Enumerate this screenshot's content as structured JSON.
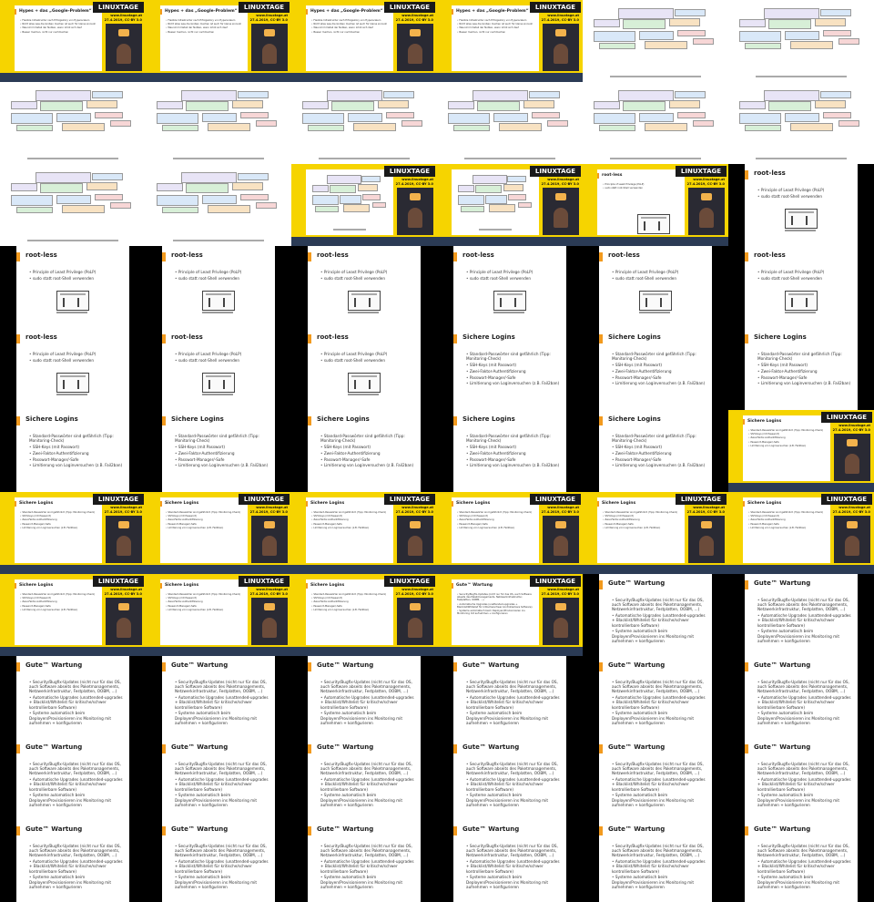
{
  "slides": {
    "hypes": {
      "title": "Hypes + das „Google-Problem“",
      "bullets": [
        "Flexible Infrastruktur nach Erfolgsstory von Hyperscalern",
        "Nicht alles was die Großen machen ist auch für kleine sinnvoll",
        "Was ist im Detail der Nutzen, wann lohnt sich das?",
        "Besser machen, nicht nur nachmachen"
      ]
    },
    "architecture": {
      "title": "",
      "source_caption": "Quelle: https://..."
    },
    "rootless": {
      "title": "root-less",
      "bullets": [
        "Principle of Least Privilege (PoLP)",
        "sudo statt root-Shell verwenden"
      ]
    },
    "logins": {
      "title": "Sichere Logins",
      "bullets": [
        "Standard-Passwörter sind gefährlich (Tipp: Monitoring-Check)",
        "SSH-Keys (mit Passwort)",
        "Zwei-Faktor-Authentifizierung",
        "Passwort-Manager/-Safe",
        "Limitierung von Loginversuchen (z.B. Fail2ban)"
      ]
    },
    "wartung": {
      "title": "Gute™ Wartung",
      "bullets": [
        "Security/Bugfix-Updates (nicht nur für das OS, auch Software abseits des Paketmanagements, Netzwerkinfrastruktur, Festplatten, OOBM, …)",
        "Automatische Upgrades (unattended-upgrades + Blacklist/Whitelist für kritische/schwer kontrollierbare Software)",
        "Systeme automatisch beim Deployen/Provisionieren ins Monitoring mit aufnehmen + konfigurieren"
      ]
    }
  },
  "overlay": {
    "logo": "LINUXTAGE",
    "url": "www.linuxtage.at",
    "license": "27.4.2019, CC-BY 3.0"
  },
  "tiles": [
    "cam-hypes",
    "cam-hypes",
    "cam-hypes",
    "cam-hypes",
    "arch",
    "arch",
    "arch",
    "arch",
    "arch",
    "arch",
    "arch",
    "arch",
    "arch",
    "arch",
    "cam-arch",
    "cam-arch",
    "cam-rootless",
    "rootless",
    "rootless",
    "rootless",
    "rootless",
    "rootless",
    "rootless",
    "rootless",
    "rootless",
    "rootless",
    "rootless",
    "logins",
    "logins",
    "logins",
    "logins",
    "logins",
    "logins",
    "logins",
    "logins",
    "cam-logins",
    "cam-logins",
    "cam-logins",
    "cam-logins",
    "cam-logins",
    "cam-logins",
    "cam-logins",
    "cam-logins",
    "cam-logins",
    "cam-logins",
    "cam-wartung",
    "wartung",
    "wartung",
    "wartung",
    "wartung",
    "wartung",
    "wartung",
    "wartung",
    "wartung",
    "wartung",
    "wartung",
    "wartung",
    "wartung",
    "wartung",
    "wartung",
    "wartung",
    "wartung",
    "wartung",
    "wartung",
    "wartung",
    "wartung"
  ]
}
